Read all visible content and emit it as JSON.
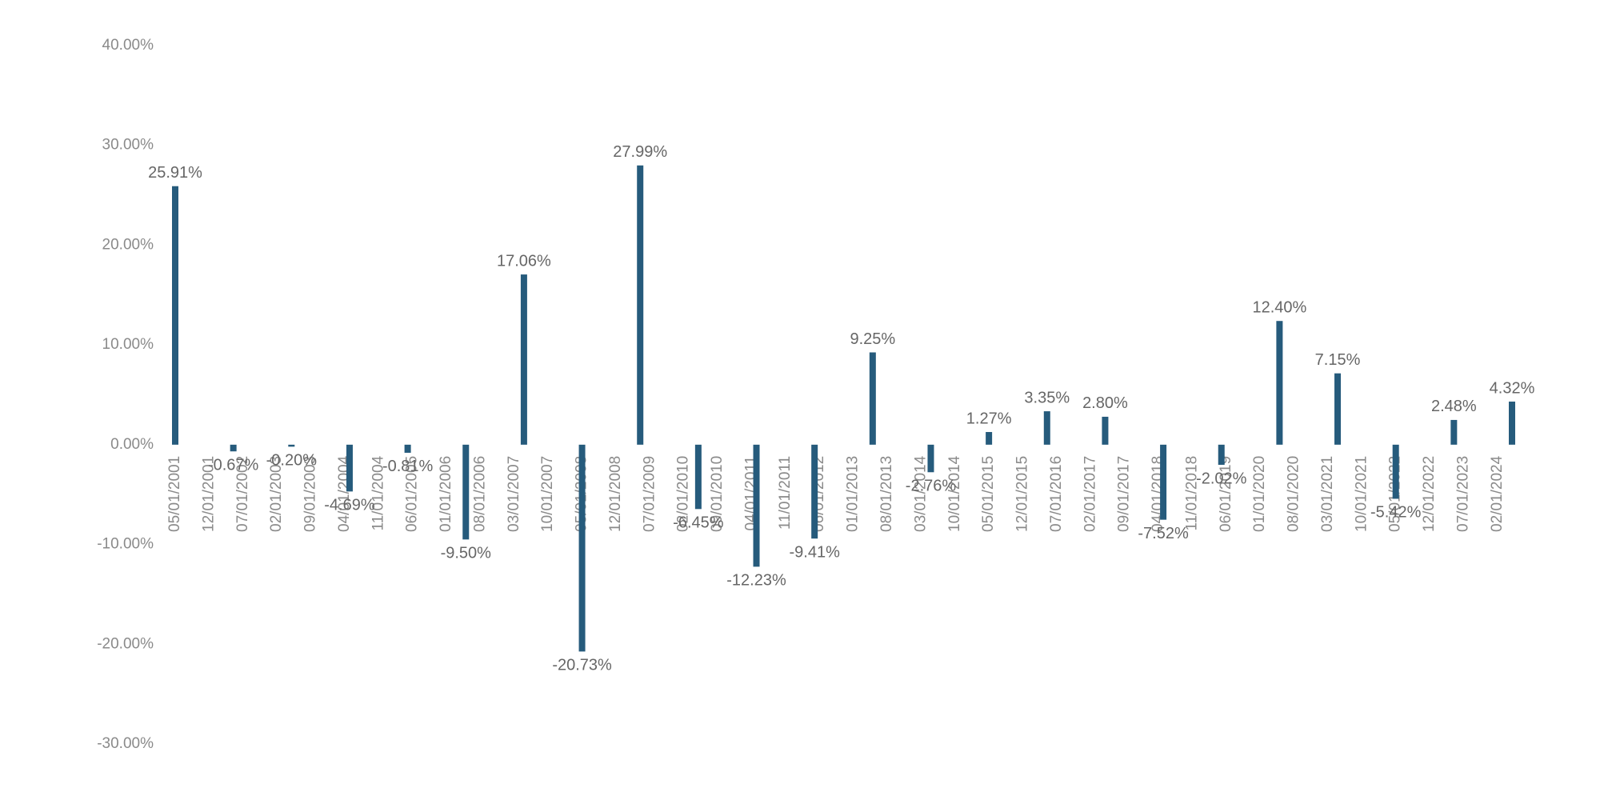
{
  "chart_data": {
    "type": "bar",
    "x": [
      "05/01/2001",
      "05/01/2002",
      "05/01/2003",
      "05/01/2004",
      "05/01/2005",
      "05/01/2006",
      "05/01/2007",
      "05/01/2008",
      "05/01/2009",
      "05/01/2010",
      "05/01/2011",
      "05/01/2012",
      "05/01/2013",
      "05/01/2014",
      "05/01/2015",
      "05/01/2016",
      "05/01/2017",
      "05/01/2018",
      "05/01/2019",
      "05/01/2020",
      "05/01/2021",
      "05/01/2022",
      "05/01/2023",
      "05/01/2024"
    ],
    "values": [
      25.91,
      -0.67,
      -0.2,
      -4.69,
      -0.81,
      -9.5,
      17.06,
      -20.73,
      27.99,
      -6.45,
      -12.23,
      -9.41,
      9.25,
      -2.76,
      1.27,
      3.35,
      2.8,
      -7.52,
      -2.02,
      12.4,
      7.15,
      -5.42,
      2.48,
      4.32
    ],
    "value_labels": [
      "25.91%",
      "-0.67%",
      "-0.20%",
      "-4.69%",
      "-0.81%",
      "-9.50%",
      "17.06%",
      "-20.73%",
      "27.99%",
      "-6.45%",
      "-12.23%",
      "-9.41%",
      "9.25%",
      "-2.76%",
      "1.27%",
      "3.35%",
      "2.80%",
      "-7.52%",
      "-2.02%",
      "12.40%",
      "7.15%",
      "-5.42%",
      "2.48%",
      "4.32%"
    ],
    "color": "#265b7c",
    "xlim": [
      "05/01/2001",
      "05/01/2024"
    ],
    "xticks": [
      "05/01/2001",
      "12/01/2001",
      "07/01/2002",
      "02/01/2003",
      "09/01/2003",
      "04/01/2004",
      "11/01/2004",
      "06/01/2005",
      "01/01/2006",
      "08/01/2006",
      "03/01/2007",
      "10/01/2007",
      "05/01/2008",
      "12/01/2008",
      "07/01/2009",
      "02/01/2010",
      "09/01/2010",
      "04/01/2011",
      "11/01/2011",
      "06/01/2012",
      "01/01/2013",
      "08/01/2013",
      "03/01/2014",
      "10/01/2014",
      "05/01/2015",
      "12/01/2015",
      "07/01/2016",
      "02/01/2017",
      "09/01/2017",
      "04/01/2018",
      "11/01/2018",
      "06/01/2019",
      "01/01/2020",
      "08/01/2020",
      "03/01/2021",
      "10/01/2021",
      "05/01/2022",
      "12/01/2022",
      "07/01/2023",
      "02/01/2024"
    ],
    "ylim": [
      -30,
      40
    ],
    "yticks": [
      {
        "value": -30,
        "label": "-30.00%"
      },
      {
        "value": -20,
        "label": "-20.00%"
      },
      {
        "value": -10,
        "label": "-10.00%"
      },
      {
        "value": 0,
        "label": "0.00%"
      },
      {
        "value": 10,
        "label": "10.00%"
      },
      {
        "value": 20,
        "label": "20.00%"
      },
      {
        "value": 30,
        "label": "30.00%"
      },
      {
        "value": 40,
        "label": "40.00%"
      }
    ],
    "grid": false
  }
}
